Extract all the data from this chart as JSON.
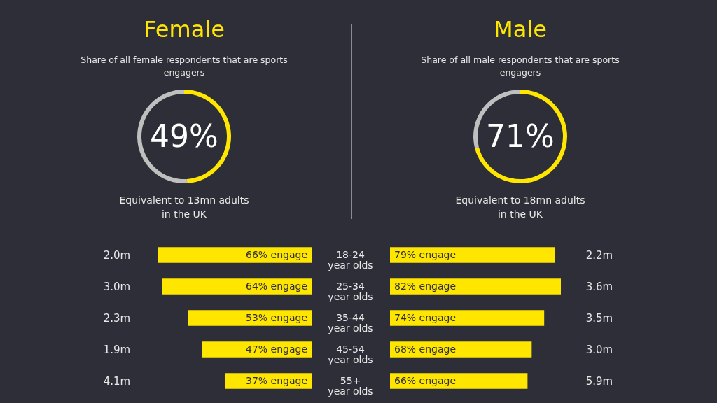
{
  "chart_data": [
    {
      "type": "donut",
      "title": "Female",
      "subtitle": "Share of all female respondents that are sports engagers",
      "categories": [
        null,
        null
      ],
      "values": [
        49,
        51
      ],
      "colors": [
        "#ffe600",
        "#bfbfbf"
      ],
      "value_labels": [
        "49%",
        null
      ],
      "annotations": [
        "Equivalent to 13mn adults in the UK"
      ]
    },
    {
      "type": "donut",
      "title": "Male",
      "subtitle": "Share of all male respondents that are sports engagers",
      "categories": [
        null,
        null
      ],
      "values": [
        71,
        29
      ],
      "colors": [
        "#ffe600",
        "#bfbfbf"
      ],
      "value_labels": [
        "71%",
        null
      ],
      "annotations": [
        "Equivalent to 18mn adults in the UK"
      ]
    },
    {
      "type": "bar",
      "orientation": "horizontal",
      "tick_labels": "y",
      "categories": [
        "18-24 year olds",
        "25-34 year olds",
        "35-44 year olds",
        "45-54 year olds",
        "55+ year olds"
      ],
      "values": [
        66,
        64,
        53,
        47,
        37
      ],
      "color": "#ffe600",
      "value_labels": [
        "66% engage",
        "64% engage",
        "53% engage",
        "47% engage",
        "37% engage"
      ],
      "annotations": [
        "2.0m",
        "3.0m",
        "2.3m",
        "1.9m",
        "4.1m"
      ]
    },
    {
      "type": "bar",
      "orientation": "horizontal",
      "tick_labels": false,
      "categories": [
        null,
        null,
        null,
        null,
        null
      ],
      "values": [
        79,
        82,
        74,
        68,
        66
      ],
      "color": "#ffe600",
      "value_labels": [
        "79% engage",
        "82% engage",
        "74% engage",
        "68% engage",
        "66% engage"
      ],
      "annotations": [
        "2.2m",
        "3.6m",
        "3.5m",
        "3.0m",
        "5.9m"
      ]
    }
  ]
}
